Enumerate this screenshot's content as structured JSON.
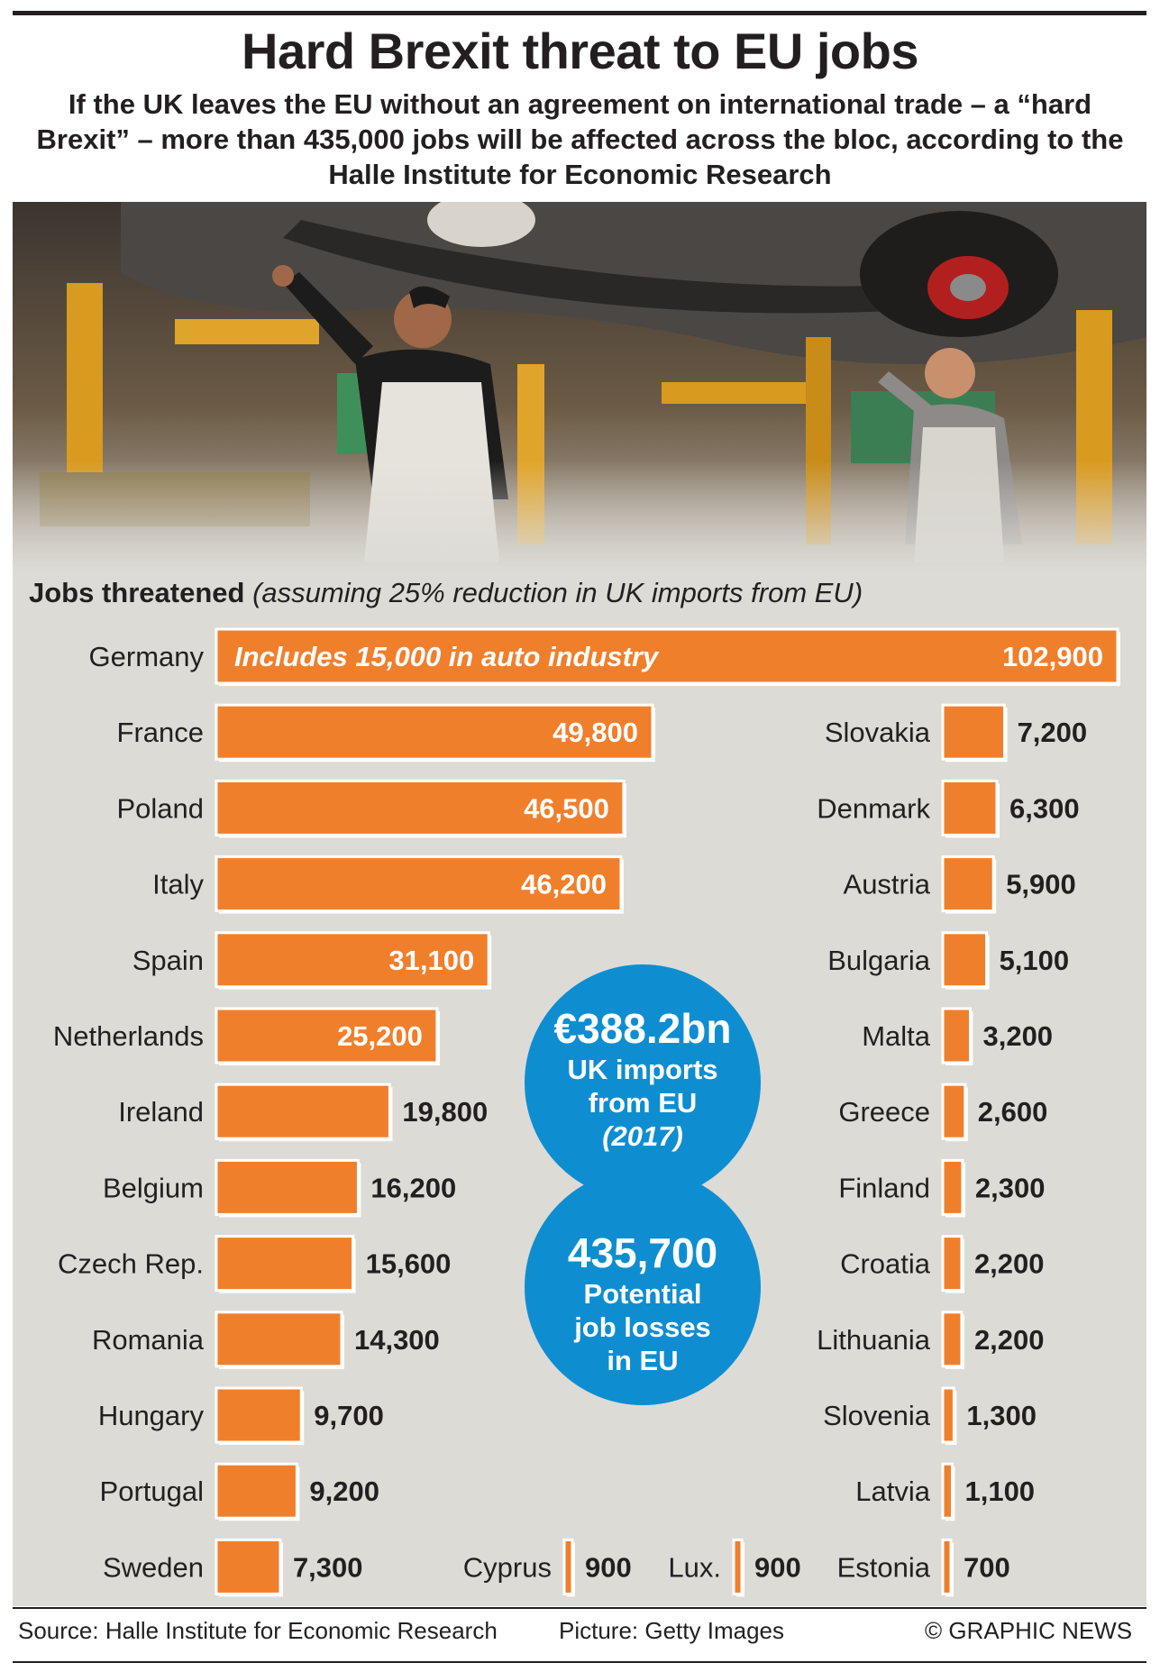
{
  "title": "Hard Brexit threat to EU jobs",
  "subtitle": "If the UK leaves the EU without an agreement on international trade – a “hard Brexit” – more than 435,000 jobs will be affected across the bloc, according to the Halle Institute for Economic Research",
  "chart_heading": {
    "bold": "Jobs threatened",
    "italic": "(assuming 25% reduction in UK imports from EU)"
  },
  "colors": {
    "bar": "#f07f2c",
    "panel": "#dddbd6",
    "circle": "#0e8ed0",
    "text": "#231f20"
  },
  "chart_data": {
    "type": "bar",
    "orientation": "horizontal",
    "germany_note": "Includes 15,000 in auto industry",
    "left_column": [
      {
        "country": "Germany",
        "value": 102900,
        "label": "102,900"
      },
      {
        "country": "France",
        "value": 49800,
        "label": "49,800"
      },
      {
        "country": "Poland",
        "value": 46500,
        "label": "46,500"
      },
      {
        "country": "Italy",
        "value": 46200,
        "label": "46,200"
      },
      {
        "country": "Spain",
        "value": 31100,
        "label": "31,100"
      },
      {
        "country": "Netherlands",
        "value": 25200,
        "label": "25,200"
      },
      {
        "country": "Ireland",
        "value": 19800,
        "label": "19,800"
      },
      {
        "country": "Belgium",
        "value": 16200,
        "label": "16,200"
      },
      {
        "country": "Czech Rep.",
        "value": 15600,
        "label": "15,600"
      },
      {
        "country": "Romania",
        "value": 14300,
        "label": "14,300"
      },
      {
        "country": "Hungary",
        "value": 9700,
        "label": "9,700"
      },
      {
        "country": "Portugal",
        "value": 9200,
        "label": "9,200"
      },
      {
        "country": "Sweden",
        "value": 7300,
        "label": "7,300"
      }
    ],
    "right_column": [
      {
        "country": "Slovakia",
        "value": 7200,
        "label": "7,200"
      },
      {
        "country": "Denmark",
        "value": 6300,
        "label": "6,300"
      },
      {
        "country": "Austria",
        "value": 5900,
        "label": "5,900"
      },
      {
        "country": "Bulgaria",
        "value": 5100,
        "label": "5,100"
      },
      {
        "country": "Malta",
        "value": 3200,
        "label": "3,200"
      },
      {
        "country": "Greece",
        "value": 2600,
        "label": "2,600"
      },
      {
        "country": "Finland",
        "value": 2300,
        "label": "2,300"
      },
      {
        "country": "Croatia",
        "value": 2200,
        "label": "2,200"
      },
      {
        "country": "Lithuania",
        "value": 2200,
        "label": "2,200"
      },
      {
        "country": "Slovenia",
        "value": 1300,
        "label": "1,300"
      },
      {
        "country": "Latvia",
        "value": 1100,
        "label": "1,100"
      },
      {
        "country": "Estonia",
        "value": 700,
        "label": "700"
      }
    ],
    "bottom_extra": [
      {
        "country": "Cyprus",
        "value": 900,
        "label": "900"
      },
      {
        "country": "Lux.",
        "value": 900,
        "label": "900"
      }
    ]
  },
  "circles": {
    "imports": {
      "value": "€388.2bn",
      "line1": "UK imports",
      "line2": "from EU",
      "year": "(2017)"
    },
    "losses": {
      "value": "435,700",
      "line1": "Potential",
      "line2": "job losses",
      "line3": "in EU"
    }
  },
  "footer": {
    "source": "Source: Halle Institute for Economic Research",
    "picture": "Picture: Getty Images",
    "credit": "© GRAPHIC NEWS"
  }
}
